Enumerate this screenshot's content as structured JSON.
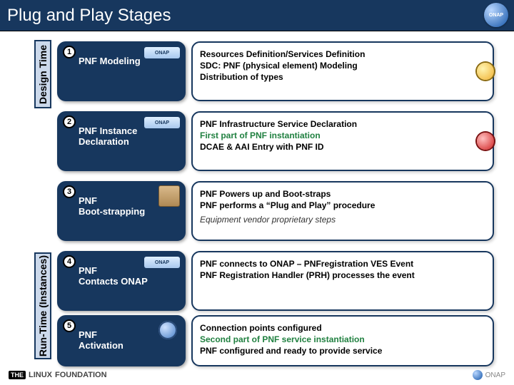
{
  "title": "Plug and Play Stages",
  "logo_text": "ONAP",
  "sidebar": {
    "design_label": "Design Time",
    "runtime_label": "Run-Time (Instances)"
  },
  "stages": [
    {
      "num": "1",
      "title_l1": "PNF Modeling",
      "title_l2": "",
      "has_logo": true,
      "has_box": false,
      "has_gear": false,
      "status": "yellow",
      "desc_l1": "Resources Definition/Services Definition",
      "desc_l2": "SDC: PNF (physical element) Modeling",
      "desc_l3": "Distribution of types",
      "desc_note": ""
    },
    {
      "num": "2",
      "title_l1": "PNF Instance",
      "title_l2": "Declaration",
      "has_logo": true,
      "has_box": false,
      "has_gear": false,
      "status": "red",
      "desc_l1": "PNF Infrastructure Service Declaration",
      "desc_l2": "First part of PNF instantiation",
      "desc_l2_class": "green",
      "desc_l3": "DCAE & AAI Entry with PNF ID",
      "desc_note": ""
    },
    {
      "num": "3",
      "title_l1": "PNF",
      "title_l2": "Boot-strapping",
      "has_logo": false,
      "has_box": true,
      "has_gear": false,
      "status": "",
      "desc_l1": "PNF Powers up and Boot-straps",
      "desc_l2": "PNF performs a “Plug and Play” procedure",
      "desc_l3": "",
      "desc_note": "Equipment vendor proprietary steps"
    },
    {
      "num": "4",
      "title_l1": "PNF",
      "title_l2": "Contacts ONAP",
      "has_logo": true,
      "has_box": false,
      "has_gear": false,
      "status": "",
      "desc_l1": "PNF connects to ONAP – PNFregistration VES Event",
      "desc_l2": "PNF Registration Handler (PRH) processes the event",
      "desc_l3": "",
      "desc_note": ""
    },
    {
      "num": "5",
      "title_l1": "PNF",
      "title_l2": "Activation",
      "has_logo": false,
      "has_box": false,
      "has_gear": true,
      "status": "",
      "desc_l1": "Connection points configured",
      "desc_l2": "Second part of PNF service instantiation",
      "desc_l2_class": "green",
      "desc_l3": "PNF configured and ready to provide service",
      "desc_note": ""
    }
  ],
  "footer": {
    "left_pre": "THE",
    "left_mid": "LINUX",
    "left_post": "FOUNDATION",
    "right": "ONAP"
  },
  "colors": {
    "primary": "#17375e",
    "panel": "#ccd9eb",
    "green": "#208040"
  }
}
